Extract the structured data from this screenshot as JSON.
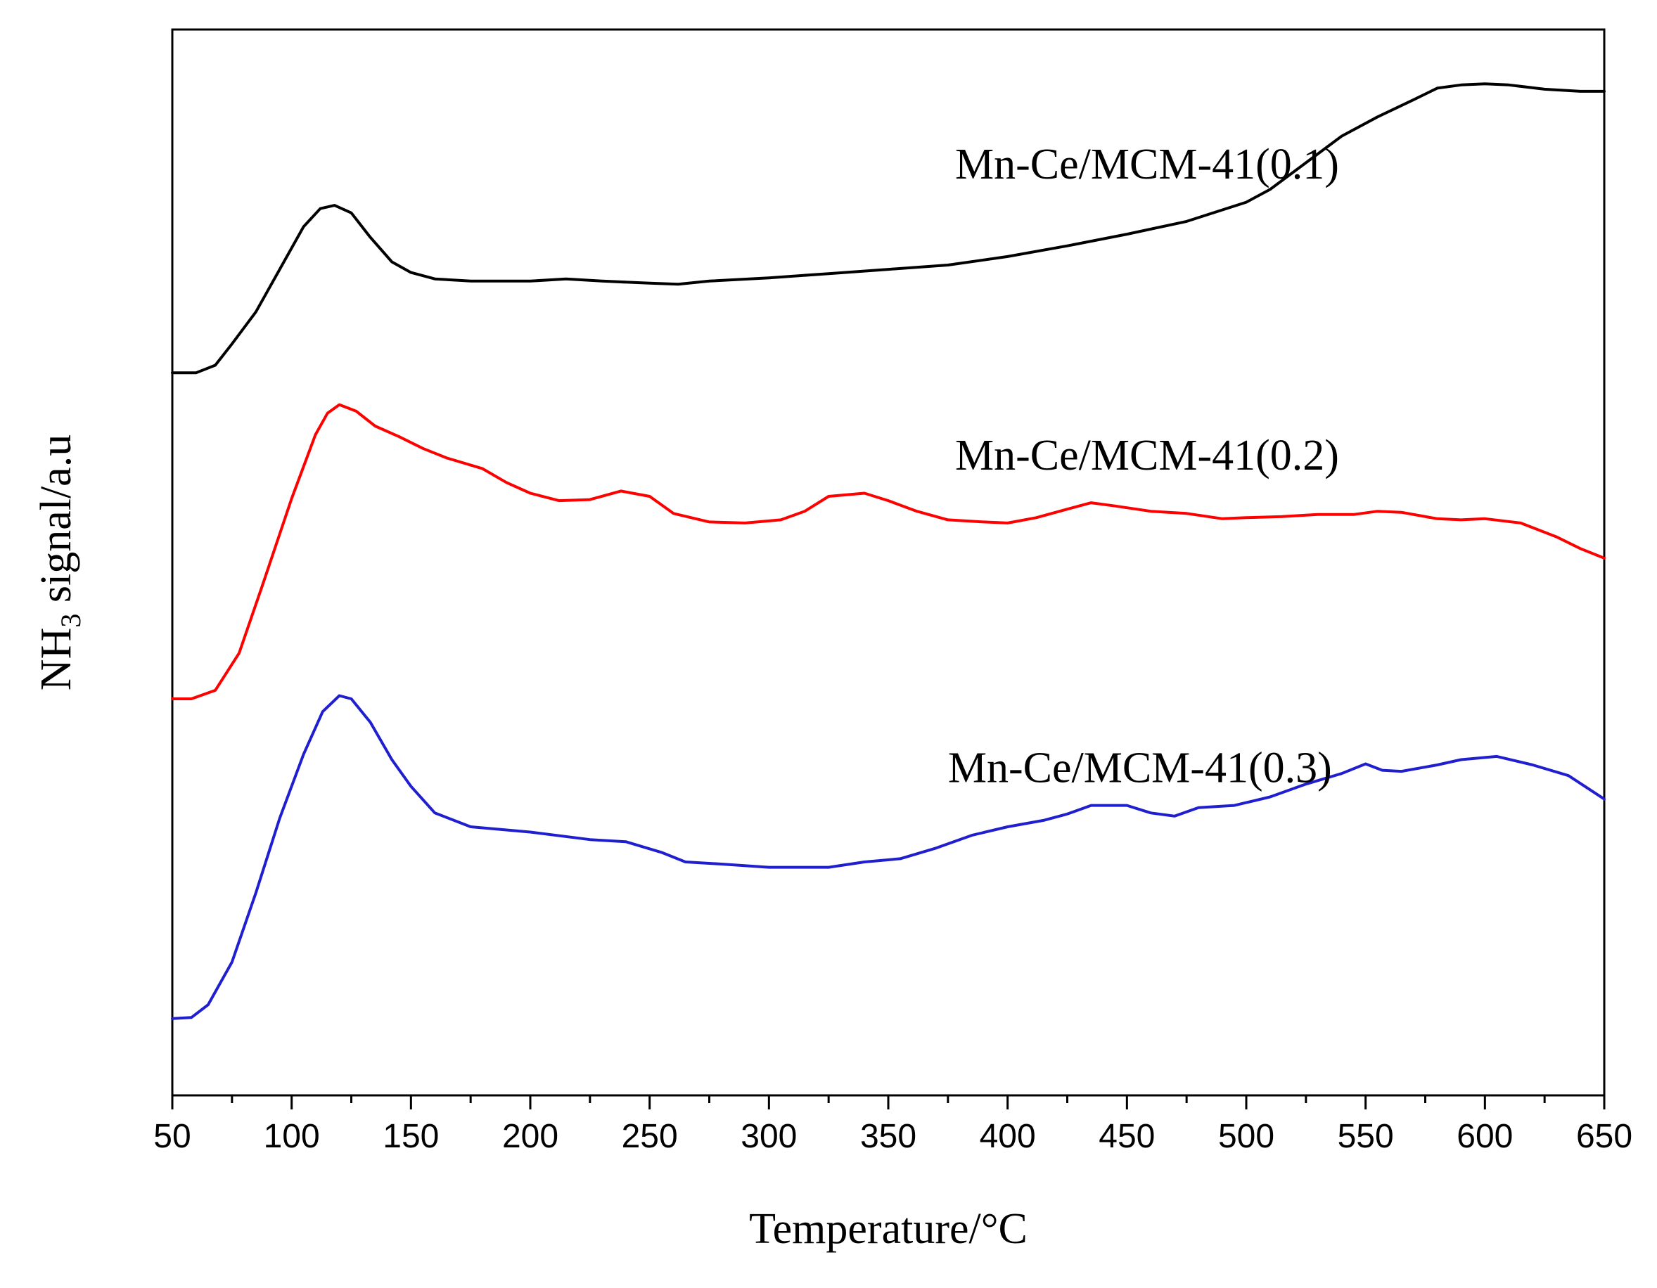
{
  "chart_data": {
    "type": "line",
    "title": "",
    "xlabel": "Temperature/°C",
    "ylabel": {
      "prefix": "NH",
      "subscript": "3",
      "suffix": " signal/a.u"
    },
    "xlim": [
      50,
      650
    ],
    "ylim": [
      0,
      1
    ],
    "x_ticks": [
      50,
      100,
      150,
      200,
      250,
      300,
      350,
      400,
      450,
      500,
      550,
      600,
      650
    ],
    "x_minor_step": 25,
    "y_ticks_shown": false,
    "grid": false,
    "series": [
      {
        "name": "Mn-Ce/MCM-41(0.1)",
        "color": "#000000",
        "points": [
          [
            50,
            0.678
          ],
          [
            60,
            0.678
          ],
          [
            68,
            0.685
          ],
          [
            75,
            0.705
          ],
          [
            85,
            0.735
          ],
          [
            95,
            0.775
          ],
          [
            105,
            0.815
          ],
          [
            112,
            0.832
          ],
          [
            118,
            0.835
          ],
          [
            125,
            0.828
          ],
          [
            133,
            0.805
          ],
          [
            142,
            0.782
          ],
          [
            150,
            0.772
          ],
          [
            160,
            0.766
          ],
          [
            175,
            0.764
          ],
          [
            200,
            0.764
          ],
          [
            215,
            0.766
          ],
          [
            230,
            0.764
          ],
          [
            250,
            0.762
          ],
          [
            262,
            0.761
          ],
          [
            275,
            0.764
          ],
          [
            300,
            0.767
          ],
          [
            325,
            0.771
          ],
          [
            350,
            0.775
          ],
          [
            375,
            0.779
          ],
          [
            400,
            0.787
          ],
          [
            425,
            0.797
          ],
          [
            450,
            0.808
          ],
          [
            475,
            0.82
          ],
          [
            500,
            0.838
          ],
          [
            510,
            0.85
          ],
          [
            525,
            0.875
          ],
          [
            540,
            0.9
          ],
          [
            555,
            0.918
          ],
          [
            570,
            0.934
          ],
          [
            580,
            0.945
          ],
          [
            590,
            0.948
          ],
          [
            600,
            0.949
          ],
          [
            610,
            0.948
          ],
          [
            625,
            0.944
          ],
          [
            640,
            0.942
          ],
          [
            650,
            0.942
          ]
        ]
      },
      {
        "name": "Mn-Ce/MCM-41(0.2)",
        "color": "#ff0000",
        "points": [
          [
            50,
            0.372
          ],
          [
            58,
            0.372
          ],
          [
            68,
            0.38
          ],
          [
            78,
            0.415
          ],
          [
            88,
            0.48
          ],
          [
            100,
            0.56
          ],
          [
            110,
            0.62
          ],
          [
            115,
            0.64
          ],
          [
            120,
            0.648
          ],
          [
            127,
            0.642
          ],
          [
            135,
            0.628
          ],
          [
            145,
            0.618
          ],
          [
            155,
            0.607
          ],
          [
            165,
            0.598
          ],
          [
            180,
            0.588
          ],
          [
            190,
            0.575
          ],
          [
            200,
            0.565
          ],
          [
            212,
            0.558
          ],
          [
            225,
            0.559
          ],
          [
            238,
            0.567
          ],
          [
            250,
            0.562
          ],
          [
            260,
            0.546
          ],
          [
            275,
            0.538
          ],
          [
            290,
            0.537
          ],
          [
            305,
            0.54
          ],
          [
            315,
            0.548
          ],
          [
            325,
            0.562
          ],
          [
            340,
            0.565
          ],
          [
            350,
            0.558
          ],
          [
            362,
            0.548
          ],
          [
            375,
            0.54
          ],
          [
            390,
            0.538
          ],
          [
            400,
            0.537
          ],
          [
            412,
            0.542
          ],
          [
            425,
            0.55
          ],
          [
            435,
            0.556
          ],
          [
            445,
            0.553
          ],
          [
            460,
            0.548
          ],
          [
            475,
            0.546
          ],
          [
            490,
            0.541
          ],
          [
            500,
            0.542
          ],
          [
            515,
            0.543
          ],
          [
            530,
            0.545
          ],
          [
            545,
            0.545
          ],
          [
            555,
            0.548
          ],
          [
            565,
            0.547
          ],
          [
            580,
            0.541
          ],
          [
            590,
            0.54
          ],
          [
            600,
            0.541
          ],
          [
            615,
            0.537
          ],
          [
            630,
            0.524
          ],
          [
            640,
            0.513
          ],
          [
            650,
            0.504
          ]
        ]
      },
      {
        "name": "Mn-Ce/MCM-41(0.3)",
        "color": "#1f1fd0",
        "points": [
          [
            50,
            0.072
          ],
          [
            58,
            0.073
          ],
          [
            65,
            0.085
          ],
          [
            75,
            0.125
          ],
          [
            85,
            0.19
          ],
          [
            95,
            0.26
          ],
          [
            105,
            0.32
          ],
          [
            113,
            0.36
          ],
          [
            120,
            0.375
          ],
          [
            125,
            0.372
          ],
          [
            133,
            0.35
          ],
          [
            142,
            0.315
          ],
          [
            150,
            0.29
          ],
          [
            160,
            0.265
          ],
          [
            175,
            0.252
          ],
          [
            200,
            0.247
          ],
          [
            225,
            0.24
          ],
          [
            240,
            0.238
          ],
          [
            255,
            0.228
          ],
          [
            265,
            0.219
          ],
          [
            280,
            0.217
          ],
          [
            300,
            0.214
          ],
          [
            325,
            0.214
          ],
          [
            340,
            0.219
          ],
          [
            355,
            0.222
          ],
          [
            370,
            0.232
          ],
          [
            385,
            0.244
          ],
          [
            400,
            0.252
          ],
          [
            415,
            0.258
          ],
          [
            425,
            0.264
          ],
          [
            435,
            0.272
          ],
          [
            450,
            0.272
          ],
          [
            460,
            0.265
          ],
          [
            470,
            0.262
          ],
          [
            480,
            0.27
          ],
          [
            495,
            0.272
          ],
          [
            510,
            0.28
          ],
          [
            525,
            0.292
          ],
          [
            540,
            0.302
          ],
          [
            550,
            0.311
          ],
          [
            557,
            0.305
          ],
          [
            565,
            0.304
          ],
          [
            580,
            0.31
          ],
          [
            590,
            0.315
          ],
          [
            605,
            0.318
          ],
          [
            620,
            0.31
          ],
          [
            635,
            0.3
          ],
          [
            650,
            0.278
          ]
        ]
      }
    ],
    "annotations": [
      {
        "text": "Mn-Ce/MCM-41(0.1)",
        "x": 378,
        "y": 0.86
      },
      {
        "text": "Mn-Ce/MCM-41(0.2)",
        "x": 378,
        "y": 0.587
      },
      {
        "text": "Mn-Ce/MCM-41(0.3)",
        "x": 375,
        "y": 0.294
      }
    ]
  }
}
